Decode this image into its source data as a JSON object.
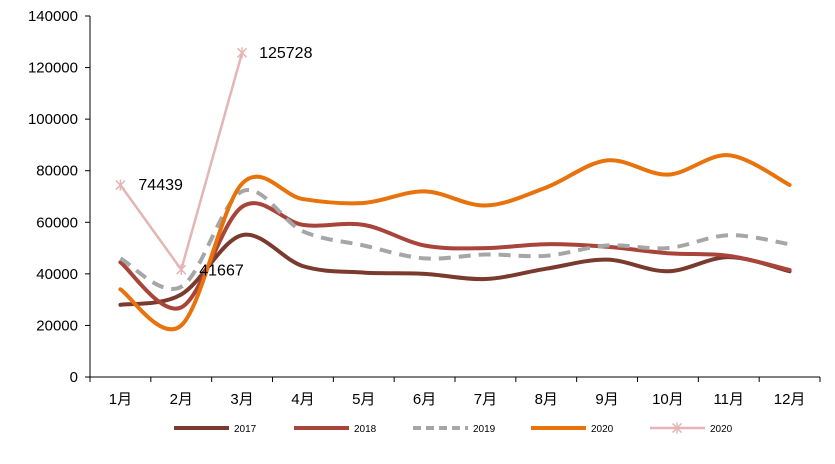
{
  "chart_data": {
    "type": "line",
    "categories": [
      "1月",
      "2月",
      "3月",
      "4月",
      "5月",
      "6月",
      "7月",
      "8月",
      "9月",
      "10月",
      "11月",
      "12月"
    ],
    "ylim": [
      0,
      140000
    ],
    "yticks": [
      0,
      20000,
      40000,
      60000,
      80000,
      100000,
      120000,
      140000
    ],
    "ytick_labels": [
      "0",
      "20000",
      "40000",
      "60000",
      "80000",
      "100000",
      "120000",
      "140000"
    ],
    "grid": false,
    "legend_position": "bottom",
    "series": [
      {
        "name": "2017",
        "color": "#7B3A2E",
        "dash": "solid",
        "marker": "none",
        "values": [
          28000,
          32000,
          55000,
          43000,
          40500,
          40000,
          38000,
          42000,
          45500,
          41000,
          46500,
          41000
        ]
      },
      {
        "name": "2018",
        "color": "#A8443A",
        "dash": "solid",
        "marker": "none",
        "values": [
          44500,
          27000,
          66000,
          59000,
          59000,
          51000,
          50000,
          51500,
          50500,
          48000,
          47000,
          41500
        ]
      },
      {
        "name": "2019",
        "color": "#A6A6A6",
        "dash": "dashed",
        "marker": "none",
        "values": [
          46000,
          35000,
          72000,
          56500,
          51000,
          46000,
          47500,
          47000,
          51000,
          50000,
          55000,
          51500
        ]
      },
      {
        "name": "2020",
        "color": "#E8720C",
        "dash": "solid",
        "marker": "none",
        "values": [
          34000,
          20000,
          75000,
          69000,
          67500,
          72000,
          66500,
          73500,
          84000,
          78500,
          86000,
          74500
        ]
      },
      {
        "name": "2020",
        "color": "#E5B5B5",
        "dash": "solid",
        "marker": "star",
        "straight": true,
        "values": [
          74439,
          41667,
          125728,
          null,
          null,
          null,
          null,
          null,
          null,
          null,
          null,
          null
        ]
      }
    ],
    "data_labels": [
      "74439",
      "41667",
      "125728"
    ]
  }
}
